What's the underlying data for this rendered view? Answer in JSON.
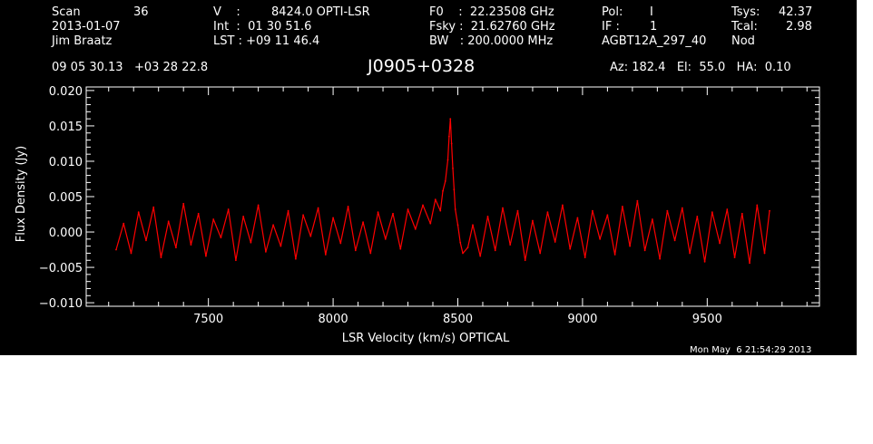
{
  "header": {
    "scan_label": "Scan",
    "scan_value": "36",
    "date": "2013-01-07",
    "observer": "Jim Braatz",
    "v_label": "V    :",
    "v_value": "8424.0 OPTI-LSR",
    "int_line": "Int  :  01 30 51.6",
    "lst_line": "LST : +09 11 46.4",
    "f0_line": "F0    :  22.23508 GHz",
    "fsky_line": "Fsky :  21.62760 GHz",
    "bw_line": "BW   : 200.0000 MHz",
    "pol_label": "Pol:",
    "pol_value": "I",
    "if_label": "IF :",
    "if_value": "1",
    "project": "AGBT12A_297_40",
    "tsys_label": "Tsys:",
    "tsys_value": "42.37",
    "tcal_label": "Tcal:",
    "tcal_value": "2.98",
    "mode": "Nod",
    "coords": "09 05 30.13   +03 28 22.8",
    "source": "J0905+0328",
    "azelha": "Az: 182.4   El:  55.0   HA:  0.10"
  },
  "footer": {
    "timestamp": "Mon May  6 21:54:29 2013"
  },
  "colors": {
    "background": "#000000",
    "foreground": "#ffffff",
    "trace": "#ff0000"
  },
  "chart_data": {
    "type": "line",
    "title": "J0905+0328",
    "xlabel": "LSR Velocity (km/s) OPTICAL",
    "ylabel": "Flux Density (Jy)",
    "xlim": [
      7010,
      9950
    ],
    "ylim": [
      -0.0105,
      0.0205
    ],
    "xticks": [
      7500,
      8000,
      8500,
      9000,
      9500
    ],
    "xtick_labels": [
      "7500",
      "8000",
      "8500",
      "9000",
      "9500"
    ],
    "yticks": [
      -0.01,
      -0.005,
      0.0,
      0.005,
      0.01,
      0.015,
      0.02
    ],
    "ytick_labels": [
      "−0.010",
      "−0.005",
      "0.000",
      "0.005",
      "0.010",
      "0.015",
      "0.020"
    ],
    "grid": false,
    "series": [
      {
        "x": [
          7130,
          7160,
          7190,
          7220,
          7250,
          7280,
          7310,
          7340,
          7370,
          7400,
          7430,
          7460,
          7490,
          7520,
          7550,
          7580,
          7610,
          7640,
          7670,
          7700,
          7730,
          7760,
          7790,
          7820,
          7850,
          7880,
          7910,
          7940,
          7970,
          8000,
          8030,
          8060,
          8090,
          8120,
          8150,
          8180,
          8210,
          8240,
          8270,
          8300,
          8330,
          8360,
          8390,
          8410,
          8430,
          8440,
          8450,
          8460,
          8465,
          8470,
          8475,
          8480,
          8485,
          8490,
          8500,
          8510,
          8520,
          8540,
          8560,
          8590,
          8620,
          8650,
          8680,
          8710,
          8740,
          8770,
          8800,
          8830,
          8860,
          8890,
          8920,
          8950,
          8980,
          9010,
          9040,
          9070,
          9100,
          9130,
          9160,
          9190,
          9220,
          9250,
          9280,
          9310,
          9340,
          9370,
          9400,
          9430,
          9460,
          9490,
          9520,
          9550,
          9580,
          9610,
          9640,
          9670,
          9700,
          9730,
          9750
        ],
        "y": [
          -0.0025,
          0.0012,
          -0.003,
          0.0028,
          -0.0012,
          0.0035,
          -0.0036,
          0.0015,
          -0.0022,
          0.004,
          -0.0018,
          0.0026,
          -0.0034,
          0.0018,
          -0.0008,
          0.0032,
          -0.004,
          0.0022,
          -0.0015,
          0.0038,
          -0.0028,
          0.001,
          -0.002,
          0.003,
          -0.0038,
          0.0024,
          -0.0006,
          0.0034,
          -0.0032,
          0.002,
          -0.0016,
          0.0036,
          -0.0026,
          0.0014,
          -0.003,
          0.0028,
          -0.001,
          0.0026,
          -0.0024,
          0.0032,
          0.0004,
          0.0038,
          0.0012,
          0.0046,
          0.003,
          0.0058,
          0.0072,
          0.0102,
          0.0135,
          0.016,
          0.0125,
          0.009,
          0.006,
          0.0032,
          0.001,
          -0.0015,
          -0.003,
          -0.0022,
          0.001,
          -0.0034,
          0.0022,
          -0.0026,
          0.0034,
          -0.0018,
          0.003,
          -0.004,
          0.0016,
          -0.003,
          0.0028,
          -0.0014,
          0.0038,
          -0.0024,
          0.002,
          -0.0036,
          0.003,
          -0.001,
          0.0024,
          -0.0032,
          0.0036,
          -0.002,
          0.0044,
          -0.0026,
          0.0018,
          -0.0038,
          0.003,
          -0.0012,
          0.0034,
          -0.003,
          0.0022,
          -0.0042,
          0.0028,
          -0.0016,
          0.0032,
          -0.0036,
          0.0026,
          -0.0044,
          0.0038,
          -0.003,
          0.003
        ]
      }
    ]
  }
}
